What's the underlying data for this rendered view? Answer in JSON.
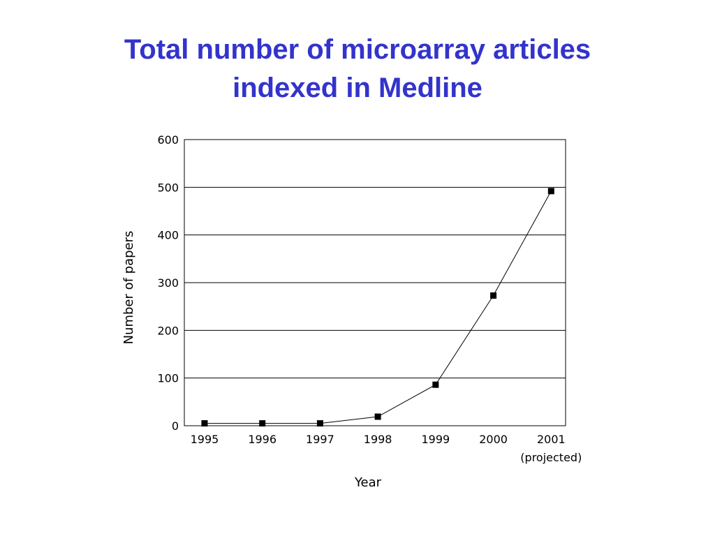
{
  "title_lines": [
    "Total number of microarray articles",
    "indexed in Medline"
  ],
  "colors": {
    "title": "#3333cc",
    "line": "#000000",
    "marker": "#000000",
    "grid": "#000000"
  },
  "chart_data": {
    "type": "line",
    "title": "Total number of microarray articles indexed in Medline",
    "xlabel": "Year",
    "ylabel": "Number of papers",
    "categories": [
      "1995",
      "1996",
      "1997",
      "1998",
      "1999",
      "2000",
      "2001"
    ],
    "category_sublabels": [
      "",
      "",
      "",
      "",
      "",
      "",
      "(projected)"
    ],
    "series": [
      {
        "values": [
          5,
          5,
          5,
          19,
          86,
          273,
          492
        ],
        "marker": "square"
      }
    ],
    "ylim": [
      0,
      600
    ],
    "yticks": [
      0,
      100,
      200,
      300,
      400,
      500,
      600
    ],
    "grid": "horizontal",
    "legend": "none"
  }
}
